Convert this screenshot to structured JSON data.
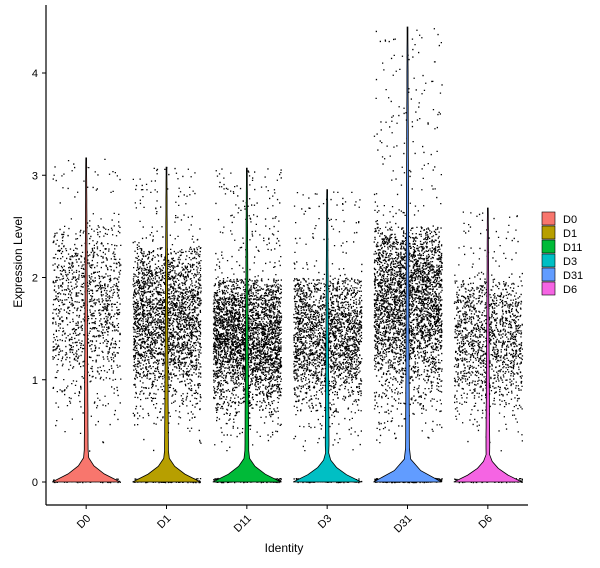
{
  "chart_data": {
    "type": "violin",
    "title": "",
    "xlabel": "Identity",
    "ylabel": "Expression Level",
    "ylim": [
      -0.25,
      4.55
    ],
    "yticks": [
      0,
      1,
      2,
      3,
      4
    ],
    "categories": [
      "D0",
      "D1",
      "D11",
      "D3",
      "D31",
      "D6"
    ],
    "legend": {
      "position": "right",
      "entries": [
        "D0",
        "D1",
        "D11",
        "D3",
        "D31",
        "D6"
      ]
    },
    "grid": false,
    "jitter_points": true,
    "series": [
      {
        "name": "D0",
        "color": "#F8766D",
        "max": 3.17,
        "point_density": 0.45,
        "upper_body": 2.5
      },
      {
        "name": "D1",
        "color": "#B79F00",
        "max": 3.08,
        "point_density": 1.0,
        "upper_body": 2.3
      },
      {
        "name": "D11",
        "color": "#00BA38",
        "max": 3.07,
        "point_density": 1.25,
        "upper_body": 2.0
      },
      {
        "name": "D3",
        "color": "#00BFC4",
        "max": 2.86,
        "point_density": 0.85,
        "upper_body": 2.0
      },
      {
        "name": "D31",
        "color": "#619CFF",
        "max": 4.45,
        "point_density": 1.25,
        "upper_body": 2.5
      },
      {
        "name": "D6",
        "color": "#F564E3",
        "max": 2.68,
        "point_density": 0.55,
        "upper_body": 2.0
      }
    ]
  }
}
